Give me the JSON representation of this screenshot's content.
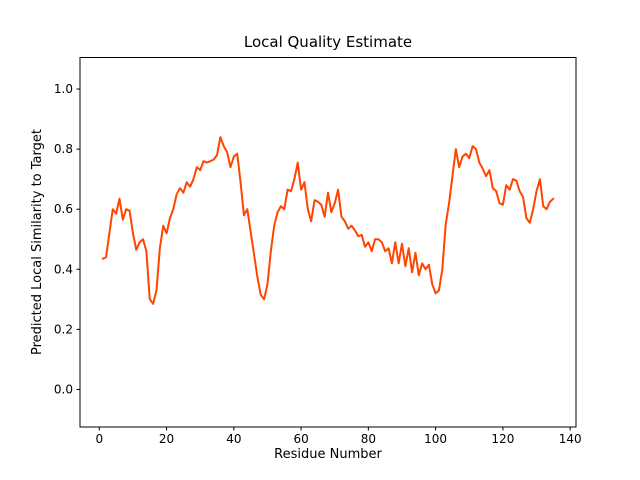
{
  "chart_data": {
    "type": "line",
    "title": "Local Quality Estimate",
    "xlabel": "Residue Number",
    "ylabel": "Predicted Local Similarity to Target",
    "legend": "none",
    "grid": false,
    "line_color": "#ff4500",
    "line_width": 2,
    "frame_color": "#000000",
    "background_color": "#ffffff",
    "xlim": [
      -5.74,
      141.74
    ],
    "ylim": [
      -0.125,
      1.105
    ],
    "xtick_values": [
      0,
      20,
      40,
      60,
      80,
      100,
      120,
      140
    ],
    "xtick_labels": [
      "0",
      "20",
      "40",
      "60",
      "80",
      "100",
      "120",
      "140"
    ],
    "ytick_values": [
      0.0,
      0.2,
      0.4,
      0.6,
      0.8,
      1.0
    ],
    "ytick_labels": [
      "0.0",
      "0.2",
      "0.4",
      "0.6",
      "0.8",
      "1.0"
    ],
    "x_start": 1,
    "x_step": 1,
    "values": [
      0.435,
      0.44,
      0.52,
      0.6,
      0.585,
      0.635,
      0.565,
      0.6,
      0.595,
      0.52,
      0.465,
      0.49,
      0.5,
      0.46,
      0.3,
      0.285,
      0.33,
      0.47,
      0.545,
      0.52,
      0.57,
      0.6,
      0.65,
      0.67,
      0.655,
      0.69,
      0.675,
      0.7,
      0.74,
      0.73,
      0.76,
      0.755,
      0.76,
      0.765,
      0.78,
      0.84,
      0.81,
      0.79,
      0.74,
      0.775,
      0.785,
      0.69,
      0.58,
      0.6,
      0.525,
      0.45,
      0.375,
      0.315,
      0.3,
      0.35,
      0.46,
      0.545,
      0.59,
      0.61,
      0.6,
      0.665,
      0.66,
      0.7,
      0.755,
      0.665,
      0.69,
      0.6,
      0.56,
      0.63,
      0.625,
      0.615,
      0.575,
      0.655,
      0.59,
      0.62,
      0.665,
      0.575,
      0.56,
      0.535,
      0.545,
      0.53,
      0.51,
      0.515,
      0.475,
      0.49,
      0.46,
      0.5,
      0.5,
      0.49,
      0.46,
      0.47,
      0.42,
      0.49,
      0.42,
      0.485,
      0.41,
      0.47,
      0.39,
      0.455,
      0.38,
      0.42,
      0.4,
      0.415,
      0.35,
      0.32,
      0.33,
      0.4,
      0.55,
      0.62,
      0.71,
      0.8,
      0.74,
      0.775,
      0.785,
      0.77,
      0.81,
      0.8,
      0.755,
      0.735,
      0.71,
      0.73,
      0.67,
      0.66,
      0.62,
      0.615,
      0.68,
      0.665,
      0.7,
      0.695,
      0.66,
      0.64,
      0.57,
      0.555,
      0.6,
      0.66,
      0.7,
      0.61,
      0.6,
      0.625,
      0.635
    ]
  }
}
